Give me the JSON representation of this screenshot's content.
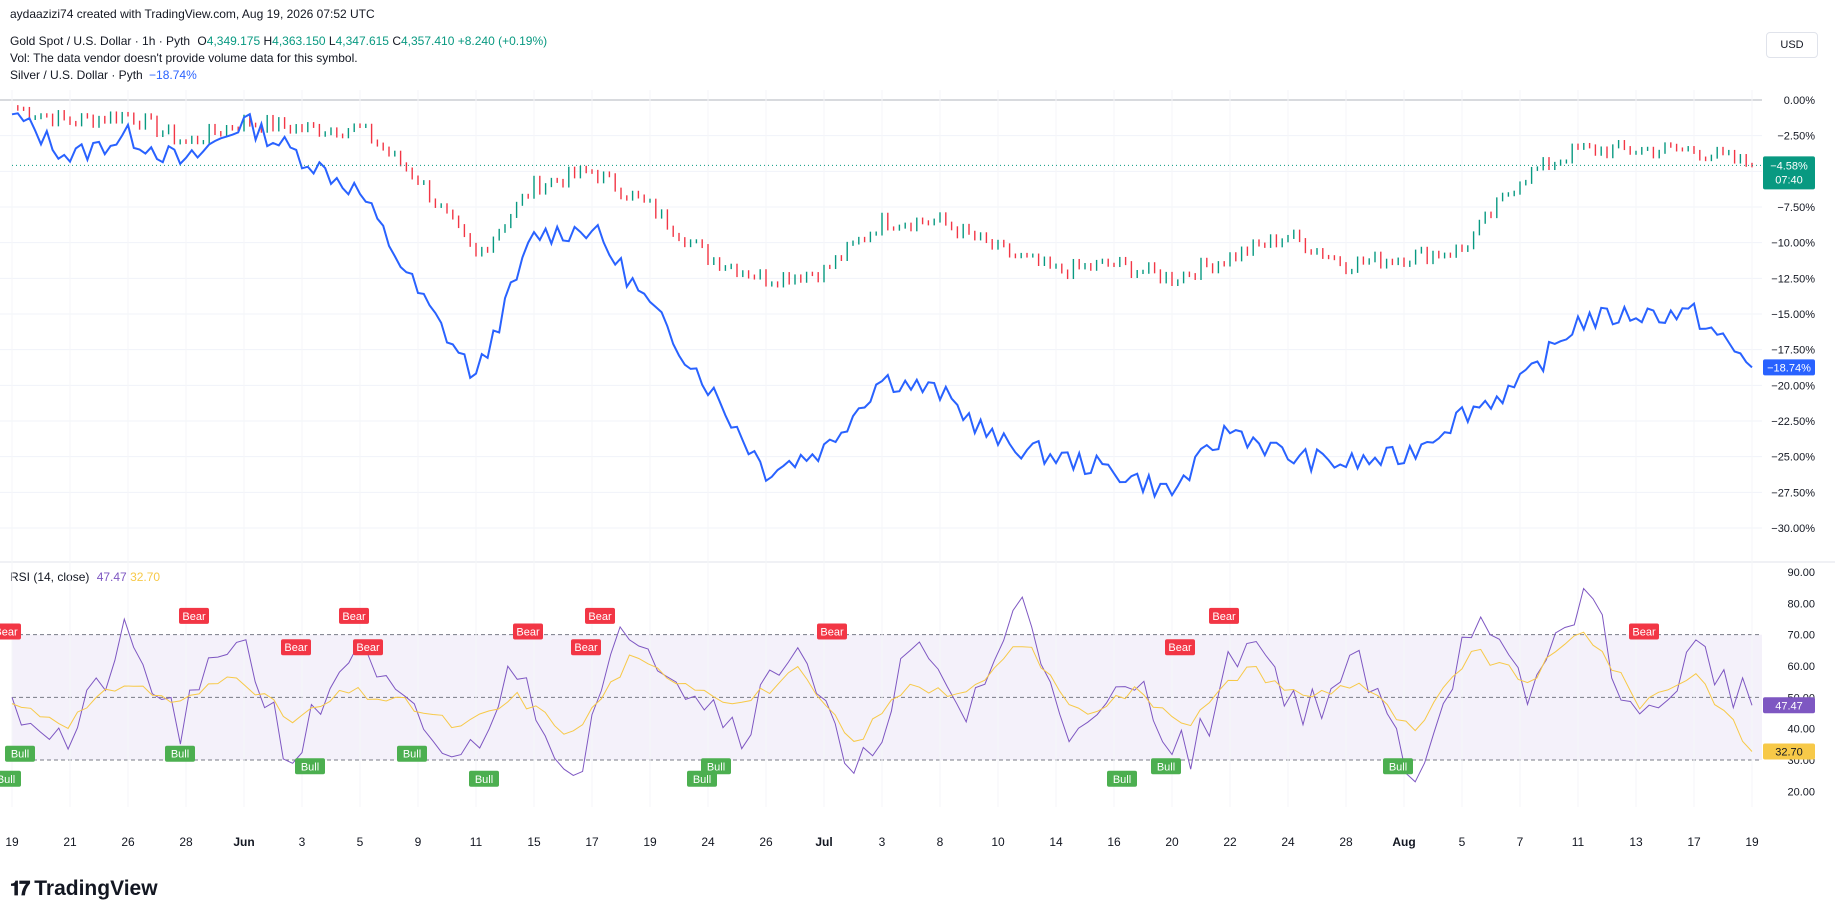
{
  "header": {
    "created": "aydaazizi74 created with TradingView.com, Aug 19, 2026 07:52 UTC",
    "gold_title": "Gold Spot / U.S. Dollar · 1h · Pyth",
    "gold_o_label": "O",
    "gold_o": "4,349.175",
    "gold_h_label": "H",
    "gold_h": "4,363.150",
    "gold_l_label": "L",
    "gold_l": "4,347.615",
    "gold_c_label": "C",
    "gold_c": "4,357.410",
    "gold_change": "+8.240 (+0.19%)",
    "vol_note": "Vol: The data vendor doesn't provide volume data for this symbol.",
    "silver_title": "Silver / U.S. Dollar · Pyth",
    "silver_change": "−18.74%",
    "rsi_title": "RSI (14, close)",
    "rsi_value": "47.47",
    "rsi_ma_value": "32.70"
  },
  "currency_button": "USD",
  "brand": "TradingView",
  "colors": {
    "gold": "#089981",
    "gold_down": "#f23645",
    "silver": "#2962ff",
    "rsi": "#7e57c2",
    "rsi_ma": "#f7c948",
    "bull": "#4caf50",
    "bear": "#f23645",
    "band": "#ede7f6"
  },
  "chart_data": [
    {
      "type": "line",
      "title": "Gold Spot / U.S. Dollar · 1h · Pyth",
      "y_axis_ticks": [
        "0.00%",
        "−2.50%",
        "−5.00%",
        "−7.50%",
        "−10.00%",
        "−12.50%",
        "−15.00%",
        "−17.50%",
        "−20.00%",
        "−22.50%",
        "−25.00%",
        "−27.50%",
        "−30.00%"
      ],
      "ylim": [
        -30,
        0
      ],
      "x_ticks": [
        "19",
        "21",
        "26",
        "28",
        "Jun",
        "3",
        "5",
        "9",
        "11",
        "15",
        "17",
        "19",
        "24",
        "26",
        "Jul",
        "3",
        "8",
        "10",
        "14",
        "16",
        "20",
        "22",
        "24",
        "28",
        "Aug",
        "5",
        "7",
        "11",
        "13",
        "17",
        "19"
      ],
      "series": [
        {
          "name": "Gold Spot / U.S. Dollar",
          "last_label": "−4.58%",
          "countdown": "07:40",
          "x": [
            "19",
            "21",
            "26",
            "28",
            "Jun",
            "3",
            "5",
            "9",
            "11",
            "15",
            "17",
            "19",
            "24",
            "26",
            "Jul",
            "3",
            "8",
            "10",
            "14",
            "16",
            "20",
            "22",
            "24",
            "28",
            "Aug",
            "5",
            "7",
            "11",
            "13",
            "17",
            "19"
          ],
          "values": [
            -0.5,
            -1.5,
            -1.0,
            -3.0,
            -1.5,
            -2.0,
            -2.0,
            -5.5,
            -11.0,
            -6.0,
            -5.0,
            -7.5,
            -11.0,
            -12.5,
            -12.0,
            -8.5,
            -8.5,
            -10.5,
            -12.0,
            -11.5,
            -12.5,
            -11.0,
            -9.5,
            -11.5,
            -11.0,
            -10.5,
            -5.5,
            -3.5,
            -3.5,
            -3.5,
            -4.58
          ]
        },
        {
          "name": "Silver / U.S. Dollar",
          "last_label": "−18.74%",
          "x": [
            "19",
            "21",
            "26",
            "28",
            "Jun",
            "3",
            "5",
            "9",
            "11",
            "15",
            "17",
            "19",
            "24",
            "26",
            "Jul",
            "3",
            "8",
            "10",
            "14",
            "16",
            "20",
            "22",
            "24",
            "28",
            "Aug",
            "5",
            "7",
            "11",
            "13",
            "17",
            "19"
          ],
          "values": [
            -1.0,
            -4.0,
            -2.5,
            -4.5,
            -1.5,
            -4.0,
            -6.5,
            -13.5,
            -19.5,
            -9.5,
            -9.0,
            -14.5,
            -20.0,
            -26.0,
            -24.5,
            -19.5,
            -20.5,
            -24.0,
            -25.0,
            -26.0,
            -27.5,
            -23.0,
            -25.0,
            -25.5,
            -25.0,
            -22.0,
            -20.0,
            -15.5,
            -15.0,
            -15.0,
            -18.74
          ]
        }
      ]
    },
    {
      "type": "line",
      "title": "RSI (14, close)",
      "y_axis_ticks": [
        "90.00",
        "80.00",
        "70.00",
        "60.00",
        "50.00",
        "40.00",
        "30.00",
        "20.00"
      ],
      "ylim": [
        15,
        90
      ],
      "bands": [
        30,
        50,
        70
      ],
      "series": [
        {
          "name": "RSI",
          "last_label": "47.47",
          "values": [
            50,
            35,
            68,
            40,
            72,
            30,
            65,
            45,
            28,
            60,
            25,
            75,
            55,
            40,
            70,
            20,
            65,
            45,
            80,
            35,
            55,
            30,
            72,
            45,
            60,
            25,
            75,
            50,
            85,
            40,
            65,
            47.47
          ]
        },
        {
          "name": "RSI-based MA",
          "last_label": "32.70",
          "values": [
            48,
            42,
            55,
            48,
            58,
            42,
            52,
            48,
            40,
            50,
            38,
            62,
            55,
            48,
            58,
            35,
            55,
            50,
            68,
            45,
            52,
            42,
            60,
            50,
            55,
            38,
            65,
            55,
            72,
            48,
            58,
            32.7
          ]
        }
      ],
      "divergence_labels": [
        {
          "text": "Bull",
          "x": "19"
        },
        {
          "text": "Bull",
          "x": "3"
        },
        {
          "text": "Bull",
          "x": "9"
        },
        {
          "text": "Bull",
          "x": "11"
        },
        {
          "text": "Bear",
          "x": "15"
        },
        {
          "text": "Bull",
          "x": "19"
        },
        {
          "text": "Bull",
          "x": "24"
        },
        {
          "text": "Bear",
          "x": "Jul"
        },
        {
          "text": "Bear",
          "x": "3"
        },
        {
          "text": "Bull",
          "x": "16"
        },
        {
          "text": "Bull",
          "x": "20"
        },
        {
          "text": "Bear",
          "x": "20"
        },
        {
          "text": "Bear",
          "x": "22"
        },
        {
          "text": "Bull",
          "x": "24"
        },
        {
          "text": "Bull",
          "x": "28"
        },
        {
          "text": "Bear",
          "x": "28"
        },
        {
          "text": "Bull",
          "x": "Aug"
        },
        {
          "text": "Bear",
          "x": "5"
        },
        {
          "text": "Bear",
          "x": "5"
        },
        {
          "text": "Bear",
          "x": "13"
        },
        {
          "text": "Bear",
          "x": "17"
        },
        {
          "text": "Bear",
          "x": "17"
        },
        {
          "text": "Bear",
          "x": "19"
        }
      ]
    }
  ]
}
